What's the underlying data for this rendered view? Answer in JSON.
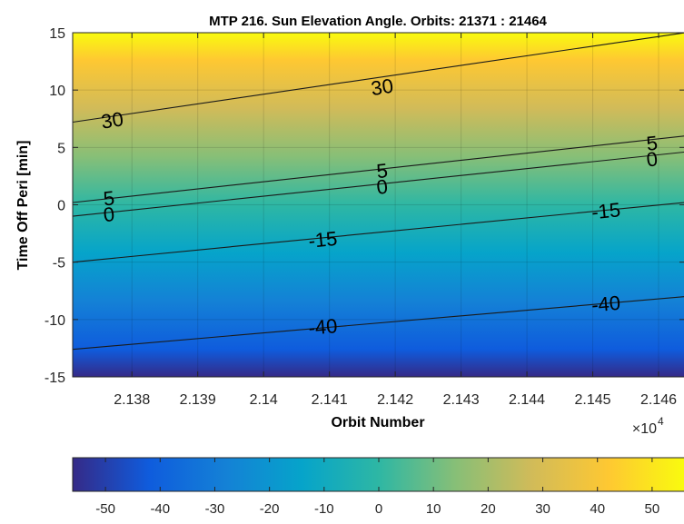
{
  "chart_data": {
    "type": "heatmap",
    "subtype": "contour over colored field",
    "title": "MTP 216. Sun Elevation Angle. Orbits: 21371 : 21464",
    "xlabel": "Orbit Number",
    "ylabel": "Time Off Peri [min]",
    "x_exponent_label": "×10",
    "x_exponent_power": "4",
    "xlim": [
      2.1371,
      2.1464
    ],
    "ylim": [
      -15,
      15
    ],
    "x_ticks": [
      2.138,
      2.139,
      2.14,
      2.141,
      2.142,
      2.143,
      2.144,
      2.145,
      2.146
    ],
    "x_tick_labels": [
      "2.138",
      "2.139",
      "2.14",
      "2.141",
      "2.142",
      "2.143",
      "2.144",
      "2.145",
      "2.146"
    ],
    "y_ticks": [
      -15,
      -10,
      -5,
      0,
      5,
      10,
      15
    ],
    "y_tick_labels": [
      "-15",
      "-10",
      "-5",
      "0",
      "5",
      "10",
      "15"
    ],
    "grid": true,
    "colormap": "parula",
    "colormap_stops": [
      "#352a87",
      "#0f5cdd",
      "#1481d6",
      "#06a4ca",
      "#2eb7a4",
      "#87bf77",
      "#d1bb59",
      "#fec832",
      "#f9fb0e"
    ],
    "colorbar": {
      "position": "bottom",
      "range": [
        -56,
        56
      ],
      "ticks": [
        -50,
        -40,
        -30,
        -20,
        -10,
        0,
        10,
        20,
        30,
        40,
        50
      ],
      "tick_labels": [
        "-50",
        "-40",
        "-30",
        "-20",
        "-10",
        "0",
        "10",
        "20",
        "30",
        "40",
        "50"
      ]
    },
    "contours": [
      {
        "level": 30,
        "label": "30",
        "line": [
          [
            2.1371,
            7.2
          ],
          [
            2.1464,
            15.0
          ]
        ]
      },
      {
        "level": 5,
        "label": "5",
        "line": [
          [
            2.1371,
            0.2
          ],
          [
            2.1464,
            6.0
          ]
        ]
      },
      {
        "level": 0,
        "label": "0",
        "line": [
          [
            2.1371,
            -1.0
          ],
          [
            2.1464,
            4.6
          ]
        ]
      },
      {
        "level": -15,
        "label": "-15",
        "line": [
          [
            2.1371,
            -5.0
          ],
          [
            2.1464,
            0.2
          ]
        ]
      },
      {
        "level": -40,
        "label": "-40",
        "line": [
          [
            2.1371,
            -12.6
          ],
          [
            2.1464,
            -8.0
          ]
        ]
      }
    ],
    "contour_labels": [
      {
        "text": "30",
        "x": 2.1377,
        "y": 7.4
      },
      {
        "text": "30",
        "x": 2.1418,
        "y": 10.3
      },
      {
        "text": "5",
        "x": 2.13765,
        "y": 0.6
      },
      {
        "text": "0",
        "x": 2.13765,
        "y": -0.8
      },
      {
        "text": "5",
        "x": 2.1418,
        "y": 3.0
      },
      {
        "text": "0",
        "x": 2.1418,
        "y": 1.6
      },
      {
        "text": "5",
        "x": 2.1459,
        "y": 5.4
      },
      {
        "text": "0",
        "x": 2.1459,
        "y": 4.0
      },
      {
        "text": "-15",
        "x": 2.1409,
        "y": -3.0
      },
      {
        "text": "-15",
        "x": 2.1452,
        "y": -0.5
      },
      {
        "text": "-40",
        "x": 2.1409,
        "y": -10.6
      },
      {
        "text": "-40",
        "x": 2.1452,
        "y": -8.6
      }
    ]
  }
}
